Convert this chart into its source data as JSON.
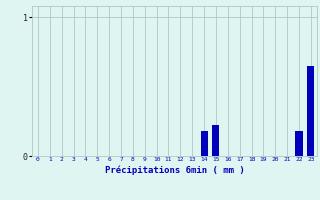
{
  "hours": [
    0,
    1,
    2,
    3,
    4,
    5,
    6,
    7,
    8,
    9,
    10,
    11,
    12,
    13,
    14,
    15,
    16,
    17,
    18,
    19,
    20,
    21,
    22,
    23
  ],
  "values": [
    0,
    0,
    0,
    0,
    0,
    0,
    0,
    0,
    0,
    0,
    0,
    0,
    0,
    0,
    0.18,
    0.22,
    0,
    0,
    0,
    0,
    0,
    0,
    0.18,
    0.65
  ],
  "bar_color": "#0000bb",
  "background_color": "#dff5f2",
  "grid_color": "#aac8c4",
  "xlabel": "Précipitations 6min ( mm )",
  "xlabel_color": "#0000bb",
  "ytick_labels": [
    "0",
    "1"
  ],
  "ytick_values": [
    0,
    1
  ],
  "ylim": [
    0,
    1.08
  ],
  "xlim": [
    -0.5,
    23.5
  ]
}
